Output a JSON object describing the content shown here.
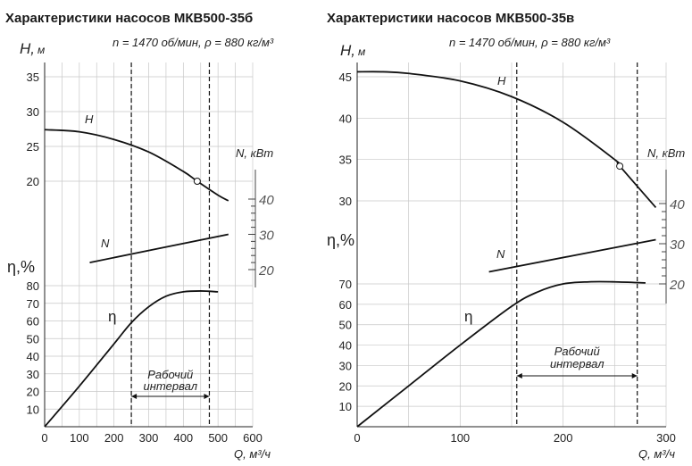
{
  "chart_data": [
    {
      "type": "line",
      "title": "Характеристики насосов МКВ500-35б",
      "subtitle": "n = 1470 об/мин, ρ = 880 кг/м³",
      "xlabel": "Q, м³/ч",
      "xlim": [
        0,
        600
      ],
      "x_ticks": [
        0,
        100,
        200,
        300,
        400,
        500,
        600
      ],
      "head_axis": {
        "label": "H, м",
        "ticks": [
          20,
          25,
          30,
          35
        ]
      },
      "eff_axis": {
        "label": "η,%",
        "ticks": [
          10,
          20,
          30,
          40,
          50,
          60,
          70,
          80
        ]
      },
      "power_axis": {
        "label": "N, кВт",
        "ticks": [
          20,
          30,
          40
        ]
      },
      "series": [
        {
          "name": "H",
          "x": [
            0,
            100,
            200,
            300,
            400,
            440,
            500,
            530
          ],
          "values": [
            27.4,
            27.1,
            26.0,
            24.2,
            21.4,
            20.0,
            18.0,
            17.2
          ]
        },
        {
          "name": "N",
          "x": [
            130,
            530
          ],
          "values": [
            22,
            30
          ]
        },
        {
          "name": "η",
          "x": [
            0,
            100,
            200,
            250,
            300,
            350,
            400,
            450,
            500
          ],
          "values": [
            0,
            23,
            47,
            59,
            68,
            74,
            76.5,
            77,
            76.5
          ]
        }
      ],
      "operating_range": {
        "label_line1": "Рабочий",
        "label_line2": "интервал",
        "q_min": 250,
        "q_max": 475
      },
      "marker": {
        "series": "H",
        "x": 440,
        "y": 20.0
      }
    },
    {
      "type": "line",
      "title": "Характеристики насосов МКВ500-35в",
      "subtitle": "n = 1470 об/мин, ρ = 880 кг/м³",
      "xlabel": "Q, м³/ч",
      "xlim": [
        0,
        300
      ],
      "x_ticks": [
        0,
        100,
        200,
        300
      ],
      "head_axis": {
        "label": "H, м",
        "ticks": [
          30,
          35,
          40,
          45
        ]
      },
      "eff_axis": {
        "label": "η,%",
        "ticks": [
          10,
          20,
          30,
          40,
          50,
          60,
          70
        ]
      },
      "power_axis": {
        "label": "N, кВт",
        "ticks": [
          20,
          30,
          40
        ]
      },
      "series": [
        {
          "name": "H",
          "x": [
            0,
            25,
            50,
            100,
            150,
            200,
            250,
            255,
            290
          ],
          "values": [
            45.6,
            45.6,
            45.4,
            44.5,
            42.6,
            39.5,
            35.0,
            34.2,
            29.2
          ]
        },
        {
          "name": "N",
          "x": [
            128,
            290
          ],
          "values": [
            23,
            31
          ]
        },
        {
          "name": "η",
          "x": [
            0,
            50,
            100,
            150,
            175,
            200,
            225,
            250,
            280
          ],
          "values": [
            0,
            20,
            40,
            59,
            66,
            70,
            71,
            71,
            70.5
          ]
        }
      ],
      "operating_range": {
        "label_line1": "Рабочий",
        "label_line2": "интервал",
        "q_min": 155,
        "q_max": 272
      },
      "marker": {
        "series": "H",
        "x": 255,
        "y": 34.2
      }
    }
  ],
  "labels": {
    "title1": "Характеристики насосов МКВ500-35б",
    "title2": "Характеристики насосов МКВ500-35в",
    "cond": "n = 1470 об/мин, ρ = 880 кг/м³",
    "h_axis": "H,",
    "h_unit": "м",
    "eta_axis": "η,%",
    "n_axis": "N, кВт",
    "q_axis": "Q, м³/ч",
    "range1": "Рабочий",
    "range2": "интервал",
    "series_h": "H",
    "series_n": "N",
    "series_eta": "η"
  }
}
